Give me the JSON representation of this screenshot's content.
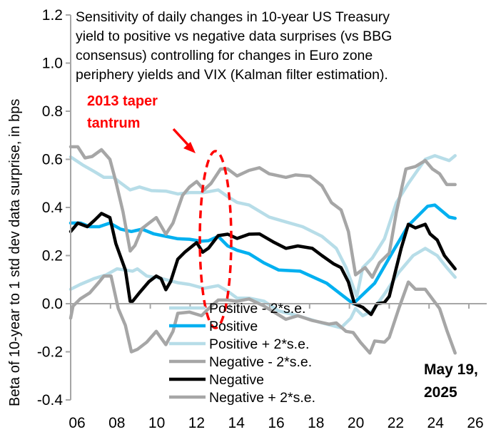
{
  "chart_data": {
    "type": "line",
    "title": "Sensitivity of daily changes in 10-year US Treasury yield to positive vs negative data surprises (vs BBG consensus) controlling for changes in Euro zone periphery yields and VIX (Kalman filter estimation).",
    "title_lines": [
      "Sensitivity of daily changes in 10-year US Treasury",
      "yield to positive vs negative data surprises (vs BBG",
      "consensus) controlling for changes in Euro zone",
      "periphery yields and VIX (Kalman filter estimation)."
    ],
    "xlabel": "",
    "ylabel": "Beta of 10-year to 1 std dev data surprise, in bps",
    "xlim": [
      2006,
      2026.8
    ],
    "ylim": [
      -0.4,
      1.2
    ],
    "x_ticks": [
      "06",
      "08",
      "10",
      "12",
      "14",
      "16",
      "18",
      "20",
      "22",
      "24",
      "26"
    ],
    "y_ticks": [
      "-0.4",
      "-0.2",
      "0.0",
      "0.2",
      "0.4",
      "0.6",
      "0.8",
      "1.0",
      "1.2"
    ],
    "grid": false,
    "legend_position": "bottom-center",
    "annotations": {
      "event_label_lines": [
        "2013 taper",
        "tantrum"
      ],
      "event_year": 2013.5,
      "date_note_lines": [
        "May 19,",
        "2025"
      ]
    },
    "series": [
      {
        "name": "Positive - 2*s.e.",
        "color": "#b7dde8",
        "points": [
          [
            2006,
            0.06
          ],
          [
            2006.48,
            0.08
          ],
          [
            2007.19,
            0.105
          ],
          [
            2007.79,
            0.12
          ],
          [
            2008.33,
            0.145
          ],
          [
            2008.75,
            0.14
          ],
          [
            2009.11,
            0.135
          ],
          [
            2009.35,
            0.145
          ],
          [
            2009.82,
            0.115
          ],
          [
            2010.54,
            0.105
          ],
          [
            2011.38,
            0.087
          ],
          [
            2011.97,
            0.08
          ],
          [
            2012.69,
            0.064
          ],
          [
            2013.41,
            0.075
          ],
          [
            2013.89,
            0.052
          ],
          [
            2014.36,
            0.023
          ],
          [
            2014.96,
            0.023
          ],
          [
            2015.72,
            0.01
          ],
          [
            2016.45,
            -0.03
          ],
          [
            2017.41,
            -0.05
          ],
          [
            2018.62,
            -0.08
          ],
          [
            2019.58,
            -0.1
          ],
          [
            2020.07,
            -0.06
          ],
          [
            2020.31,
            -0.02
          ],
          [
            2020.67,
            -0.05
          ],
          [
            2021.15,
            -0.03
          ],
          [
            2021.76,
            0.04
          ],
          [
            2022.48,
            0.13
          ],
          [
            2023.2,
            0.2
          ],
          [
            2023.81,
            0.23
          ],
          [
            2024.41,
            0.2
          ],
          [
            2024.89,
            0.15
          ],
          [
            2025.31,
            0.11
          ]
        ]
      },
      {
        "name": "Positive",
        "color": "#00b0f0",
        "points": [
          [
            2006,
            0.335
          ],
          [
            2006.5,
            0.335
          ],
          [
            2006.96,
            0.32
          ],
          [
            2007.43,
            0.32
          ],
          [
            2007.97,
            0.335
          ],
          [
            2008.51,
            0.31
          ],
          [
            2009.05,
            0.3
          ],
          [
            2009.58,
            0.31
          ],
          [
            2010.18,
            0.29
          ],
          [
            2010.78,
            0.28
          ],
          [
            2011.38,
            0.27
          ],
          [
            2011.97,
            0.268
          ],
          [
            2012.57,
            0.26
          ],
          [
            2012.93,
            0.262
          ],
          [
            2013.41,
            0.28
          ],
          [
            2013.89,
            0.24
          ],
          [
            2014.36,
            0.222
          ],
          [
            2014.96,
            0.208
          ],
          [
            2015.7,
            0.17
          ],
          [
            2016.45,
            0.14
          ],
          [
            2017.53,
            0.135
          ],
          [
            2018.86,
            0.085
          ],
          [
            2020.19,
            0.0
          ],
          [
            2021.27,
            0.085
          ],
          [
            2022.24,
            0.225
          ],
          [
            2022.96,
            0.325
          ],
          [
            2023.93,
            0.405
          ],
          [
            2024.29,
            0.41
          ],
          [
            2025.01,
            0.36
          ],
          [
            2025.31,
            0.355
          ]
        ]
      },
      {
        "name": "Positive + 2*s.e.",
        "color": "#b7dde8",
        "points": [
          [
            2006,
            0.61
          ],
          [
            2006.6,
            0.577
          ],
          [
            2007.19,
            0.549
          ],
          [
            2007.67,
            0.525
          ],
          [
            2008.15,
            0.525
          ],
          [
            2008.51,
            0.502
          ],
          [
            2008.99,
            0.473
          ],
          [
            2009.46,
            0.485
          ],
          [
            2010.06,
            0.47
          ],
          [
            2010.78,
            0.468
          ],
          [
            2011.38,
            0.456
          ],
          [
            2011.97,
            0.462
          ],
          [
            2012.69,
            0.462
          ],
          [
            2013.41,
            0.473
          ],
          [
            2013.89,
            0.445
          ],
          [
            2014.36,
            0.421
          ],
          [
            2014.96,
            0.41
          ],
          [
            2015.97,
            0.36
          ],
          [
            2016.81,
            0.34
          ],
          [
            2017.65,
            0.32
          ],
          [
            2018.62,
            0.28
          ],
          [
            2019.34,
            0.23
          ],
          [
            2019.83,
            0.15
          ],
          [
            2020.19,
            0.07
          ],
          [
            2020.37,
            0.03
          ],
          [
            2020.67,
            0.15
          ],
          [
            2021.15,
            0.19
          ],
          [
            2021.76,
            0.27
          ],
          [
            2022.36,
            0.42
          ],
          [
            2022.96,
            0.5
          ],
          [
            2023.81,
            0.6
          ],
          [
            2024.29,
            0.615
          ],
          [
            2025.01,
            0.595
          ],
          [
            2025.31,
            0.615
          ]
        ]
      },
      {
        "name": "Negative - 2*s.e.",
        "color": "#a6a6a6",
        "points": [
          [
            2006,
            -0.06
          ],
          [
            2006.12,
            -0.01
          ],
          [
            2006.48,
            0.02
          ],
          [
            2006.96,
            0.045
          ],
          [
            2007.43,
            0.09
          ],
          [
            2007.67,
            0.115
          ],
          [
            2008.03,
            0.115
          ],
          [
            2008.39,
            -0.02
          ],
          [
            2008.75,
            -0.09
          ],
          [
            2009.05,
            -0.2
          ],
          [
            2009.35,
            -0.19
          ],
          [
            2009.82,
            -0.16
          ],
          [
            2010.3,
            -0.115
          ],
          [
            2010.78,
            -0.17
          ],
          [
            2011.14,
            -0.115
          ],
          [
            2011.38,
            -0.04
          ],
          [
            2011.97,
            -0.035
          ],
          [
            2012.57,
            -0.05
          ],
          [
            2012.93,
            -0.02
          ],
          [
            2013.41,
            0.015
          ],
          [
            2013.89,
            0.015
          ],
          [
            2014.36,
            0.01
          ],
          [
            2014.96,
            0.02
          ],
          [
            2015.72,
            -0.01
          ],
          [
            2016.81,
            -0.065
          ],
          [
            2017.41,
            -0.05
          ],
          [
            2018.14,
            -0.07
          ],
          [
            2018.98,
            -0.085
          ],
          [
            2019.34,
            -0.08
          ],
          [
            2019.83,
            -0.115
          ],
          [
            2020.19,
            -0.12
          ],
          [
            2020.55,
            -0.16
          ],
          [
            2021.03,
            -0.205
          ],
          [
            2021.27,
            -0.155
          ],
          [
            2021.76,
            -0.16
          ],
          [
            2022.0,
            -0.14
          ],
          [
            2022.48,
            -0.02
          ],
          [
            2022.96,
            0.09
          ],
          [
            2023.32,
            0.06
          ],
          [
            2023.81,
            0.06
          ],
          [
            2024.17,
            0.02
          ],
          [
            2024.53,
            -0.02
          ],
          [
            2024.89,
            -0.11
          ],
          [
            2025.31,
            -0.205
          ]
        ]
      },
      {
        "name": "Negative",
        "color": "#000000",
        "points": [
          [
            2006,
            0.3
          ],
          [
            2006.36,
            0.335
          ],
          [
            2006.84,
            0.32
          ],
          [
            2007.19,
            0.346
          ],
          [
            2007.55,
            0.375
          ],
          [
            2007.97,
            0.358
          ],
          [
            2008.27,
            0.25
          ],
          [
            2008.75,
            0.14
          ],
          [
            2008.99,
            0.01
          ],
          [
            2009.11,
            0.01
          ],
          [
            2009.46,
            0.046
          ],
          [
            2009.94,
            0.092
          ],
          [
            2010.3,
            0.115
          ],
          [
            2010.54,
            0.104
          ],
          [
            2010.78,
            0.058
          ],
          [
            2011.02,
            0.092
          ],
          [
            2011.38,
            0.185
          ],
          [
            2011.73,
            0.214
          ],
          [
            2012.33,
            0.254
          ],
          [
            2012.63,
            0.214
          ],
          [
            2012.93,
            0.231
          ],
          [
            2013.41,
            0.283
          ],
          [
            2013.89,
            0.289
          ],
          [
            2014.36,
            0.271
          ],
          [
            2014.96,
            0.289
          ],
          [
            2015.48,
            0.29
          ],
          [
            2016.21,
            0.255
          ],
          [
            2016.81,
            0.23
          ],
          [
            2017.41,
            0.24
          ],
          [
            2018.14,
            0.23
          ],
          [
            2018.62,
            0.2
          ],
          [
            2019.22,
            0.165
          ],
          [
            2019.58,
            0.15
          ],
          [
            2019.95,
            0.09
          ],
          [
            2020.25,
            0.0
          ],
          [
            2020.67,
            -0.015
          ],
          [
            2021.09,
            -0.045
          ],
          [
            2021.39,
            0.0
          ],
          [
            2021.76,
            0.005
          ],
          [
            2022.0,
            0.03
          ],
          [
            2022.36,
            0.15
          ],
          [
            2022.6,
            0.23
          ],
          [
            2022.96,
            0.33
          ],
          [
            2023.32,
            0.315
          ],
          [
            2023.81,
            0.33
          ],
          [
            2024.05,
            0.29
          ],
          [
            2024.41,
            0.265
          ],
          [
            2024.77,
            0.2
          ],
          [
            2025.31,
            0.145
          ]
        ]
      },
      {
        "name": "Negative + 2*s.e.",
        "color": "#a6a6a6",
        "points": [
          [
            2006,
            0.652
          ],
          [
            2006.36,
            0.652
          ],
          [
            2006.72,
            0.606
          ],
          [
            2007.08,
            0.612
          ],
          [
            2007.55,
            0.64
          ],
          [
            2007.97,
            0.6
          ],
          [
            2008.27,
            0.508
          ],
          [
            2008.63,
            0.381
          ],
          [
            2008.99,
            0.219
          ],
          [
            2009.23,
            0.242
          ],
          [
            2009.58,
            0.312
          ],
          [
            2009.94,
            0.335
          ],
          [
            2010.3,
            0.358
          ],
          [
            2010.78,
            0.289
          ],
          [
            2011.14,
            0.335
          ],
          [
            2011.62,
            0.45
          ],
          [
            2011.97,
            0.485
          ],
          [
            2012.33,
            0.508
          ],
          [
            2012.69,
            0.473
          ],
          [
            2013.05,
            0.5
          ],
          [
            2013.53,
            0.56
          ],
          [
            2013.89,
            0.56
          ],
          [
            2014.36,
            0.531
          ],
          [
            2014.96,
            0.554
          ],
          [
            2015.48,
            0.565
          ],
          [
            2015.97,
            0.54
          ],
          [
            2016.81,
            0.525
          ],
          [
            2017.29,
            0.535
          ],
          [
            2018.02,
            0.53
          ],
          [
            2018.62,
            0.49
          ],
          [
            2019.1,
            0.42
          ],
          [
            2019.58,
            0.39
          ],
          [
            2019.95,
            0.3
          ],
          [
            2020.31,
            0.12
          ],
          [
            2020.79,
            0.15
          ],
          [
            2021.15,
            0.11
          ],
          [
            2021.51,
            0.17
          ],
          [
            2022.0,
            0.21
          ],
          [
            2022.36,
            0.38
          ],
          [
            2022.84,
            0.56
          ],
          [
            2023.32,
            0.57
          ],
          [
            2023.81,
            0.595
          ],
          [
            2024.17,
            0.56
          ],
          [
            2024.53,
            0.54
          ],
          [
            2024.89,
            0.495
          ],
          [
            2025.31,
            0.495
          ]
        ]
      }
    ]
  }
}
